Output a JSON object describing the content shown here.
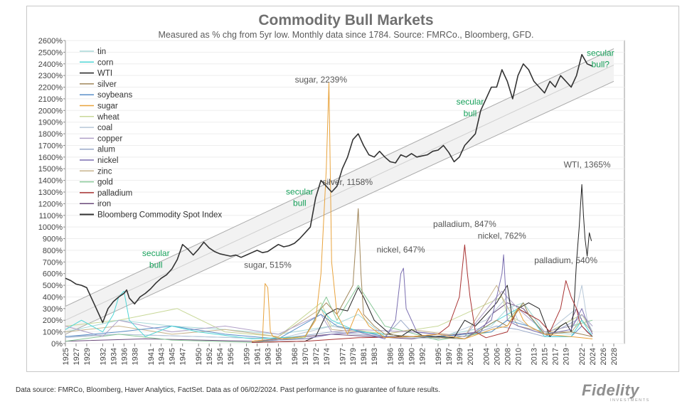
{
  "chart_data": {
    "type": "line",
    "title": "Commodity Bull Markets",
    "subtitle": "Measured as % chg from 5yr low.  Monthly data since 1784.  Source: FMRCo., Bloomberg, GFD.",
    "xlabel": "",
    "ylabel": "",
    "xlim": [
      1925,
      2030
    ],
    "ylim": [
      0,
      2600
    ],
    "y_ticks": [
      "0%",
      "100%",
      "200%",
      "300%",
      "400%",
      "500%",
      "600%",
      "700%",
      "800%",
      "900%",
      "1000%",
      "1100%",
      "1200%",
      "1300%",
      "1400%",
      "1500%",
      "1600%",
      "1700%",
      "1800%",
      "1900%",
      "2000%",
      "2100%",
      "2200%",
      "2300%",
      "2400%",
      "2500%",
      "2600%"
    ],
    "x_ticks": [
      "1925",
      "1927",
      "1929",
      "1932",
      "1934",
      "1936",
      "1938",
      "1941",
      "1943",
      "1945",
      "1947",
      "1950",
      "1952",
      "1954",
      "1956",
      "1959",
      "1961",
      "1963",
      "1965",
      "1968",
      "1970",
      "1972",
      "1974",
      "1977",
      "1979",
      "1981",
      "1983",
      "1986",
      "1988",
      "1990",
      "1992",
      "1995",
      "1997",
      "1999",
      "2001",
      "2004",
      "2006",
      "2008",
      "2010",
      "2013",
      "2015",
      "2017",
      "2019",
      "2022",
      "2024",
      "2026",
      "2028"
    ],
    "legend": {
      "position": "top-left",
      "entries": [
        "tin",
        "corn",
        "WTI",
        "silver",
        "soybeans",
        "sugar",
        "wheat",
        "coal",
        "copper",
        "alum",
        "nickel",
        "zinc",
        "gold",
        "palladium",
        "iron",
        "Bloomberg Commodity Spot Index"
      ]
    },
    "series": [
      {
        "name": "Bloomberg Commodity Spot Index",
        "color": "#333333",
        "x": [
          1925,
          1926,
          1927,
          1928,
          1929,
          1930,
          1931,
          1932,
          1933,
          1934,
          1935,
          1936,
          1936.5,
          1937,
          1938,
          1939,
          1940,
          1941,
          1942,
          1943,
          1944,
          1945,
          1946,
          1947,
          1948,
          1949,
          1950,
          1951,
          1952,
          1953,
          1954,
          1955,
          1956,
          1957,
          1958,
          1959,
          1960,
          1961,
          1962,
          1963,
          1964,
          1965,
          1966,
          1967,
          1968,
          1969,
          1970,
          1971,
          1972,
          1973,
          1974,
          1975,
          1976,
          1977,
          1978,
          1979,
          1980,
          1981,
          1982,
          1983,
          1984,
          1985,
          1986,
          1987,
          1988,
          1989,
          1990,
          1991,
          1992,
          1993,
          1994,
          1995,
          1996,
          1997,
          1998,
          1999,
          2000,
          2001,
          2002,
          2003,
          2004,
          2005,
          2006,
          2007,
          2008,
          2009,
          2010,
          2011,
          2012,
          2013,
          2014,
          2015,
          2016,
          2017,
          2018,
          2019,
          2020,
          2021,
          2022,
          2023,
          2024
        ],
        "values": [
          560,
          540,
          510,
          500,
          480,
          380,
          280,
          180,
          300,
          360,
          400,
          430,
          460,
          390,
          340,
          400,
          430,
          470,
          520,
          560,
          590,
          640,
          720,
          850,
          810,
          760,
          810,
          870,
          820,
          790,
          770,
          760,
          750,
          760,
          740,
          760,
          780,
          800,
          780,
          790,
          820,
          850,
          830,
          840,
          860,
          900,
          950,
          1000,
          1250,
          1400,
          1350,
          1300,
          1350,
          1500,
          1600,
          1750,
          1800,
          1700,
          1620,
          1600,
          1650,
          1600,
          1560,
          1550,
          1620,
          1600,
          1630,
          1600,
          1610,
          1620,
          1650,
          1660,
          1700,
          1640,
          1560,
          1600,
          1700,
          1750,
          1800,
          2000,
          2100,
          2200,
          2200,
          2350,
          2250,
          2100,
          2300,
          2400,
          2350,
          2250,
          2200,
          2150,
          2250,
          2200,
          2300,
          2250,
          2200,
          2300,
          2480,
          2400,
          2380
        ]
      },
      {
        "name": "sugar",
        "color": "#e8a33d",
        "x": [
          1960,
          1962,
          1962.5,
          1963,
          1963.5,
          1964,
          1966,
          1970,
          1972,
          1973,
          1974,
          1974.5,
          1975,
          1976,
          1978,
          1980,
          1982,
          1985,
          1990,
          1995,
          2000,
          2005,
          2008,
          2010,
          2011,
          2012,
          2015,
          2020,
          2024
        ],
        "values": [
          20,
          30,
          515,
          480,
          100,
          60,
          40,
          60,
          200,
          600,
          1500,
          2239,
          700,
          250,
          80,
          300,
          150,
          50,
          60,
          80,
          40,
          120,
          150,
          300,
          200,
          150,
          80,
          60,
          40
        ]
      },
      {
        "name": "silver",
        "color": "#a0865a",
        "x": [
          1960,
          1965,
          1970,
          1973,
          1974,
          1976,
          1979,
          1980,
          1980.5,
          1981,
          1983,
          1985,
          1990,
          2000,
          2006,
          2008,
          2011,
          2012,
          2015,
          2020,
          2024
        ],
        "values": [
          20,
          40,
          60,
          300,
          350,
          250,
          500,
          1158,
          600,
          250,
          150,
          80,
          60,
          40,
          200,
          150,
          350,
          250,
          80,
          100,
          60
        ]
      },
      {
        "name": "nickel",
        "color": "#7b6fb0",
        "x": [
          1960,
          1970,
          1975,
          1980,
          1985,
          1987,
          1988,
          1988.5,
          1989,
          1991,
          1995,
          2000,
          2005,
          2007,
          2007.3,
          2008,
          2010,
          2015,
          2020,
          2022,
          2023,
          2024
        ],
        "values": [
          20,
          40,
          80,
          100,
          40,
          200,
          600,
          647,
          300,
          100,
          80,
          40,
          200,
          600,
          762,
          200,
          150,
          80,
          120,
          300,
          180,
          80
        ]
      },
      {
        "name": "palladium",
        "color": "#a83232",
        "x": [
          1960,
          1970,
          1980,
          1990,
          1995,
          1997,
          1999,
          2000,
          2000.5,
          2001,
          2002,
          2004,
          2008,
          2010,
          2012,
          2014,
          2016,
          2018,
          2019,
          2020,
          2021,
          2021.5,
          2022,
          2023,
          2024
        ],
        "values": [
          10,
          20,
          50,
          60,
          80,
          150,
          400,
          847,
          600,
          400,
          100,
          50,
          100,
          300,
          250,
          200,
          100,
          300,
          540,
          400,
          300,
          200,
          150,
          100,
          60
        ]
      },
      {
        "name": "WTI",
        "color": "#222222",
        "x": [
          1960,
          1970,
          1972,
          1974,
          1976,
          1978,
          1980,
          1981,
          1983,
          1986,
          1988,
          1990,
          1992,
          1995,
          1998,
          2000,
          2002,
          2004,
          2006,
          2008,
          2009,
          2010,
          2012,
          2014,
          2016,
          2018,
          2019,
          2020,
          2020.5,
          2021,
          2021.5,
          2022,
          2022.3,
          2022.6,
          2023,
          2023.4,
          2023.8
        ],
        "values": [
          10,
          20,
          60,
          250,
          300,
          280,
          480,
          400,
          200,
          80,
          60,
          120,
          70,
          60,
          50,
          200,
          150,
          250,
          350,
          500,
          200,
          300,
          350,
          300,
          60,
          150,
          180,
          100,
          300,
          700,
          1000,
          1365,
          1100,
          900,
          750,
          950,
          880
        ]
      },
      {
        "name": "corn",
        "color": "#4fd6d6",
        "x": [
          1925,
          1928,
          1930,
          1932,
          1934,
          1935,
          1936,
          1937,
          1940,
          1945,
          1950,
          1960,
          1970,
          1973,
          1975,
          1980,
          1990,
          2000,
          2008,
          2010,
          2012,
          2015,
          2020,
          2022,
          2024
        ],
        "values": [
          120,
          200,
          150,
          100,
          250,
          400,
          450,
          200,
          60,
          150,
          100,
          40,
          60,
          300,
          200,
          100,
          60,
          40,
          250,
          300,
          250,
          60,
          60,
          200,
          60
        ]
      },
      {
        "name": "soybeans",
        "color": "#5a8fc8",
        "x": [
          1925,
          1935,
          1945,
          1955,
          1965,
          1973,
          1976,
          1985,
          1995,
          2005,
          2008,
          2012,
          2016,
          2020,
          2022,
          2024
        ],
        "values": [
          60,
          100,
          150,
          80,
          40,
          250,
          150,
          60,
          60,
          100,
          200,
          150,
          60,
          60,
          150,
          60
        ]
      },
      {
        "name": "copper",
        "color": "#b0a0c8",
        "x": [
          1925,
          1932,
          1935,
          1945,
          1955,
          1965,
          1973,
          1975,
          1980,
          1990,
          2000,
          2006,
          2007,
          2010,
          2015,
          2020,
          2022,
          2024
        ],
        "values": [
          150,
          60,
          200,
          100,
          150,
          80,
          250,
          100,
          120,
          100,
          60,
          400,
          450,
          300,
          100,
          150,
          250,
          150
        ]
      },
      {
        "name": "zinc",
        "color": "#c8b48c",
        "x": [
          1925,
          1935,
          1945,
          1955,
          1965,
          1973,
          1975,
          1985,
          1990,
          2000,
          2006,
          2007,
          2010,
          2015,
          2020,
          2022,
          2024
        ],
        "values": [
          100,
          150,
          80,
          120,
          60,
          300,
          120,
          80,
          120,
          60,
          500,
          400,
          150,
          100,
          100,
          200,
          100
        ]
      },
      {
        "name": "tin",
        "color": "#a8d8d8",
        "x": [
          1925,
          1935,
          1945,
          1955,
          1965,
          1975,
          1980,
          1985,
          1995,
          2005,
          2008,
          2011,
          2015,
          2020,
          2022,
          2024
        ],
        "values": [
          100,
          200,
          150,
          120,
          80,
          150,
          250,
          60,
          60,
          150,
          300,
          350,
          100,
          80,
          250,
          150
        ]
      },
      {
        "name": "gold",
        "color": "#88c898",
        "x": [
          1925,
          1935,
          1945,
          1960,
          1970,
          1974,
          1976,
          1980,
          1985,
          1995,
          2005,
          2008,
          2011,
          2015,
          2020,
          2024
        ],
        "values": [
          20,
          80,
          30,
          10,
          50,
          400,
          200,
          500,
          150,
          30,
          100,
          200,
          350,
          100,
          150,
          200
        ]
      },
      {
        "name": "coal",
        "color": "#b8c8d8",
        "x": [
          1925,
          1935,
          1950,
          1965,
          1975,
          1985,
          1995,
          2004,
          2008,
          2010,
          2015,
          2021,
          2022,
          2023,
          2024
        ],
        "values": [
          50,
          80,
          60,
          40,
          150,
          60,
          40,
          200,
          400,
          200,
          80,
          300,
          500,
          200,
          100
        ]
      },
      {
        "name": "wheat",
        "color": "#c8d898",
        "x": [
          1925,
          1935,
          1946,
          1955,
          1965,
          1973,
          1975,
          1985,
          1995,
          2007,
          2008,
          2010,
          2015,
          2022,
          2024
        ],
        "values": [
          150,
          200,
          300,
          100,
          60,
          350,
          150,
          80,
          150,
          400,
          250,
          200,
          80,
          250,
          100
        ]
      },
      {
        "name": "alum",
        "color": "#98a8c8",
        "x": [
          1925,
          1935,
          1950,
          1965,
          1975,
          1985,
          1988,
          1990,
          2000,
          2006,
          2010,
          2015,
          2021,
          2022,
          2024
        ],
        "values": [
          60,
          80,
          60,
          40,
          100,
          60,
          200,
          100,
          60,
          150,
          120,
          60,
          200,
          250,
          100
        ]
      },
      {
        "name": "iron",
        "color": "#6a4a7a",
        "x": [
          1925,
          1940,
          1960,
          1975,
          1990,
          2003,
          2005,
          2008,
          2011,
          2015,
          2020,
          2021,
          2022,
          2024
        ],
        "values": [
          20,
          40,
          20,
          80,
          40,
          100,
          250,
          350,
          300,
          80,
          200,
          300,
          200,
          100
        ]
      }
    ],
    "trend_channel": {
      "description": "secular bull trend channel",
      "lines": [
        {
          "name": "upper",
          "x": [
            1925,
            2028
          ],
          "values": [
            320,
            2530
          ]
        },
        {
          "name": "middle",
          "x": [
            1925,
            2028
          ],
          "values": [
            200,
            2390
          ]
        },
        {
          "name": "lower",
          "x": [
            1925,
            2028
          ],
          "values": [
            80,
            2250
          ]
        }
      ]
    },
    "annotations": [
      {
        "text": "sugar, 2239%",
        "x": 1973,
        "y": 2239,
        "style": "gray"
      },
      {
        "text": "silver, 1158%",
        "x": 1978,
        "y": 1360,
        "style": "gray"
      },
      {
        "text": "sugar, 515%",
        "x": 1963,
        "y": 650,
        "style": "gray"
      },
      {
        "text": "nickel, 647%",
        "x": 1988,
        "y": 780,
        "style": "gray"
      },
      {
        "text": "palladium, 847%",
        "x": 2000,
        "y": 1000,
        "style": "gray"
      },
      {
        "text": "nickel, 762%",
        "x": 2007,
        "y": 900,
        "style": "gray"
      },
      {
        "text": "palladium, 540%",
        "x": 2019,
        "y": 690,
        "style": "gray"
      },
      {
        "text": "WTI, 1365%",
        "x": 2023,
        "y": 1510,
        "style": "gray"
      },
      {
        "text": "secular",
        "x": 1942,
        "y": 750,
        "style": "green"
      },
      {
        "text": "bull",
        "x": 1942,
        "y": 650,
        "style": "green"
      },
      {
        "text": "secular",
        "x": 1969,
        "y": 1280,
        "style": "green"
      },
      {
        "text": "bull",
        "x": 1969,
        "y": 1180,
        "style": "green"
      },
      {
        "text": "secular",
        "x": 2001,
        "y": 2050,
        "style": "green"
      },
      {
        "text": "bull",
        "x": 2001,
        "y": 1950,
        "style": "green"
      },
      {
        "text": "secular",
        "x": 2025.5,
        "y": 2470,
        "style": "green"
      },
      {
        "text": "bull?",
        "x": 2025.5,
        "y": 2370,
        "style": "green"
      }
    ]
  },
  "footer": {
    "note": "Data source: FMRCo, Bloomberg, Haver Analytics, FactSet. Data as of 06/02/2024. Past performance is no guarantee of future results.",
    "brand": "Fidelity",
    "brand_sub": "INVESTMENTS"
  }
}
